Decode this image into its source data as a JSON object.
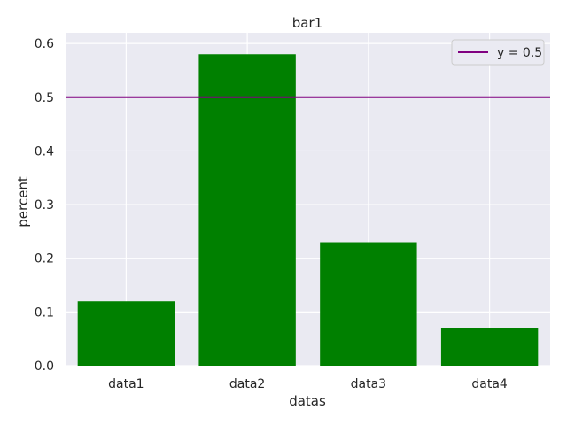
{
  "chart_data": {
    "type": "bar",
    "title": "bar1",
    "xlabel": "datas",
    "ylabel": "percent",
    "categories": [
      "data1",
      "data2",
      "data3",
      "data4"
    ],
    "values": [
      0.12,
      0.58,
      0.23,
      0.07
    ],
    "ylim": [
      0,
      0.62
    ],
    "yticks": [
      0.0,
      0.1,
      0.2,
      0.3,
      0.4,
      0.5,
      0.6
    ],
    "ytick_labels": [
      "0.0",
      "0.1",
      "0.2",
      "0.3",
      "0.4",
      "0.5",
      "0.6"
    ],
    "grid": true,
    "reference_line": {
      "y": 0.5,
      "label": "y = 0.5",
      "color": "#800080"
    },
    "legend": {
      "placement": "top-right",
      "entries": [
        "y = 0.5"
      ]
    },
    "colors": {
      "bar": "#008000",
      "plot_background": "#eaeaf2",
      "grid": "#ffffff",
      "text": "#262626",
      "reference_line": "#800080"
    }
  }
}
